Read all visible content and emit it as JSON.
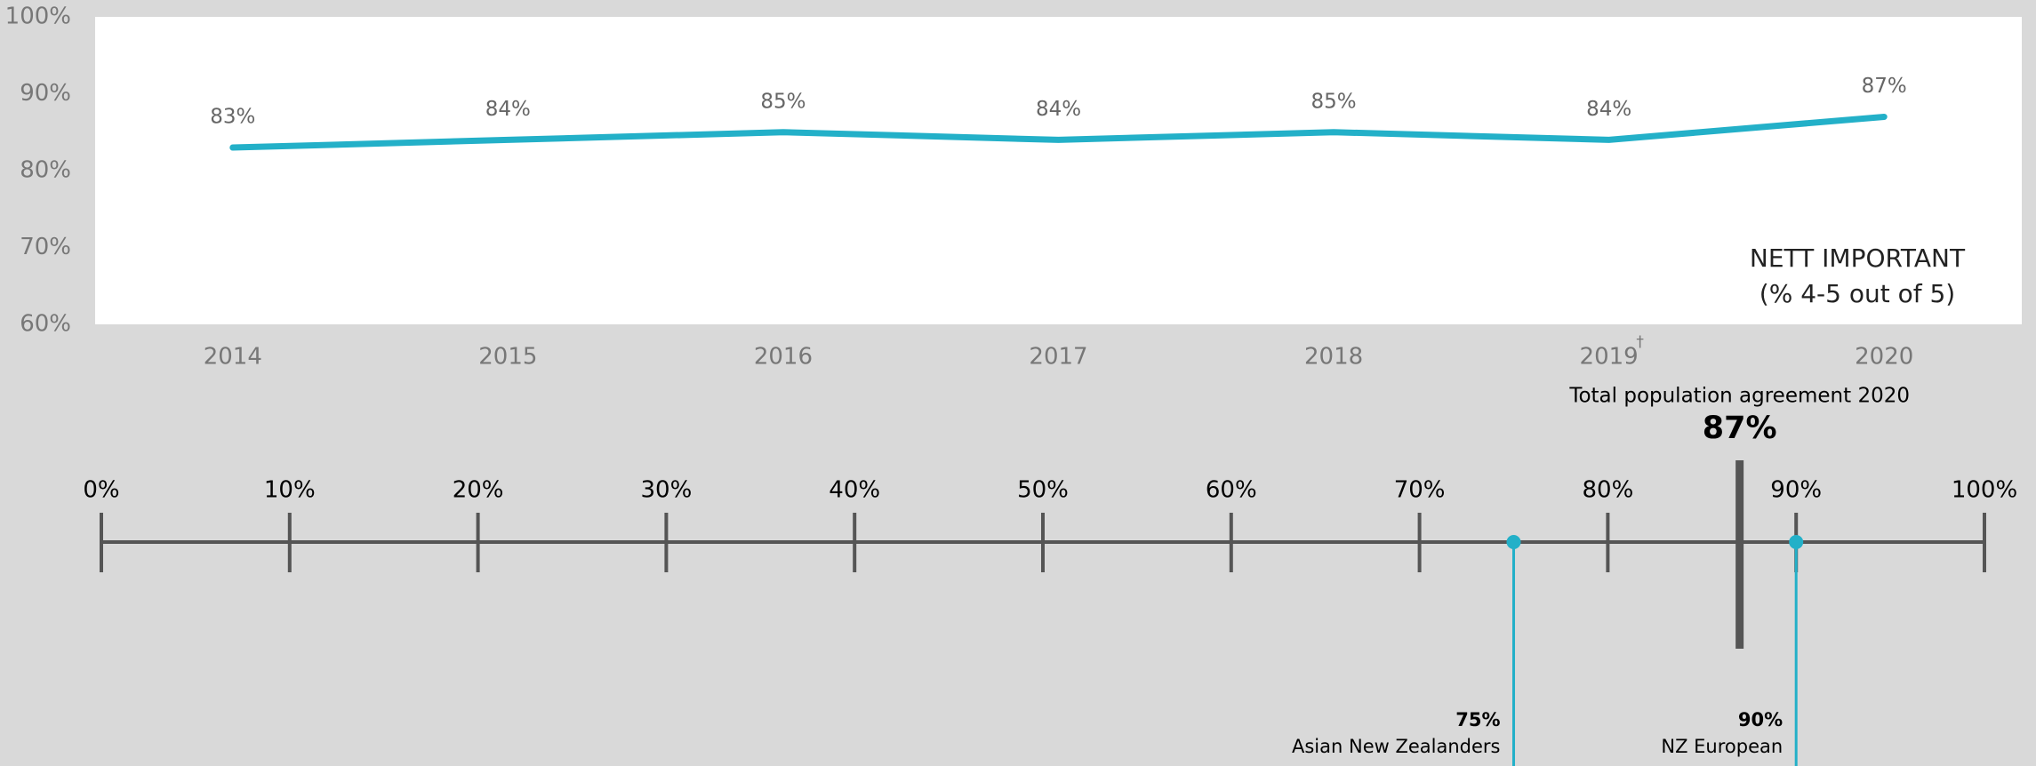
{
  "chart_data": [
    {
      "type": "line",
      "categories": [
        "2014",
        "2015",
        "2016",
        "2017",
        "2018",
        "2019",
        "2020"
      ],
      "values": [
        83,
        84,
        85,
        84,
        85,
        84,
        87
      ],
      "value_labels": [
        "83%",
        "84%",
        "85%",
        "84%",
        "85%",
        "84%",
        "87%"
      ],
      "color": "#23b0c8",
      "ylim": [
        60,
        100
      ],
      "yticks": [
        {
          "value": 60,
          "label": "60%"
        },
        {
          "value": 70,
          "label": "70%"
        },
        {
          "value": 80,
          "label": "80%"
        },
        {
          "value": 90,
          "label": "90%"
        },
        {
          "value": 100,
          "label": "100%"
        }
      ],
      "footnote_mark": "†",
      "annotations": [
        "NETT IMPORTANT",
        "(% 4-5 out of 5)"
      ],
      "grid": false
    },
    {
      "type": "dot",
      "categories": [
        "Asian New Zealanders",
        "NZ European"
      ],
      "values": [
        75,
        90
      ],
      "value_labels": [
        "75%",
        "90%"
      ],
      "color": "#23b0c8",
      "xlim": [
        0,
        100
      ],
      "xticks": [
        {
          "value": 0,
          "label": "0%"
        },
        {
          "value": 10,
          "label": "10%"
        },
        {
          "value": 20,
          "label": "20%"
        },
        {
          "value": 30,
          "label": "30%"
        },
        {
          "value": 40,
          "label": "40%"
        },
        {
          "value": 50,
          "label": "50%"
        },
        {
          "value": 60,
          "label": "60%"
        },
        {
          "value": 70,
          "label": "70%"
        },
        {
          "value": 80,
          "label": "80%"
        },
        {
          "value": 90,
          "label": "90%"
        },
        {
          "value": 100,
          "label": "100%"
        }
      ],
      "reference": {
        "label": "Total population agreement 2020",
        "value": 87,
        "value_label": "87%"
      }
    }
  ]
}
